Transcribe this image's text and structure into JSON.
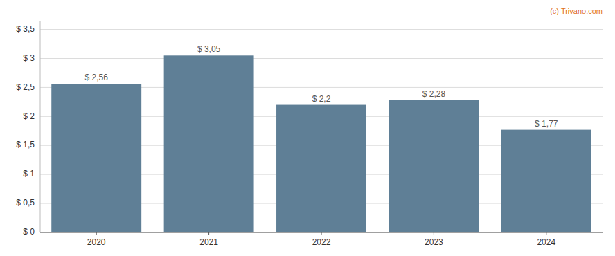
{
  "chart_data": {
    "type": "bar",
    "categories": [
      "2020",
      "2021",
      "2022",
      "2023",
      "2024"
    ],
    "values": [
      2.56,
      3.05,
      2.2,
      2.28,
      1.77
    ],
    "value_labels": [
      "$ 2,56",
      "$ 3,05",
      "$ 2,2",
      "$ 2,28",
      "$ 1,77"
    ],
    "data_labels": true,
    "color": "#5f7f96",
    "ylim": [
      0,
      3.65
    ],
    "yticks": [
      {
        "value": 0,
        "label": "$ 0"
      },
      {
        "value": 0.5,
        "label": "$ 0,5"
      },
      {
        "value": 1.0,
        "label": "$ 1"
      },
      {
        "value": 1.5,
        "label": "$ 1,5"
      },
      {
        "value": 2.0,
        "label": "$ 2"
      },
      {
        "value": 2.5,
        "label": "$ 2,5"
      },
      {
        "value": 3.0,
        "label": "$ 3"
      },
      {
        "value": 3.5,
        "label": "$ 3,5"
      }
    ],
    "grid": true,
    "annotations": [
      {
        "text": "(c) Trivano.com",
        "color": "#e07020"
      }
    ]
  }
}
